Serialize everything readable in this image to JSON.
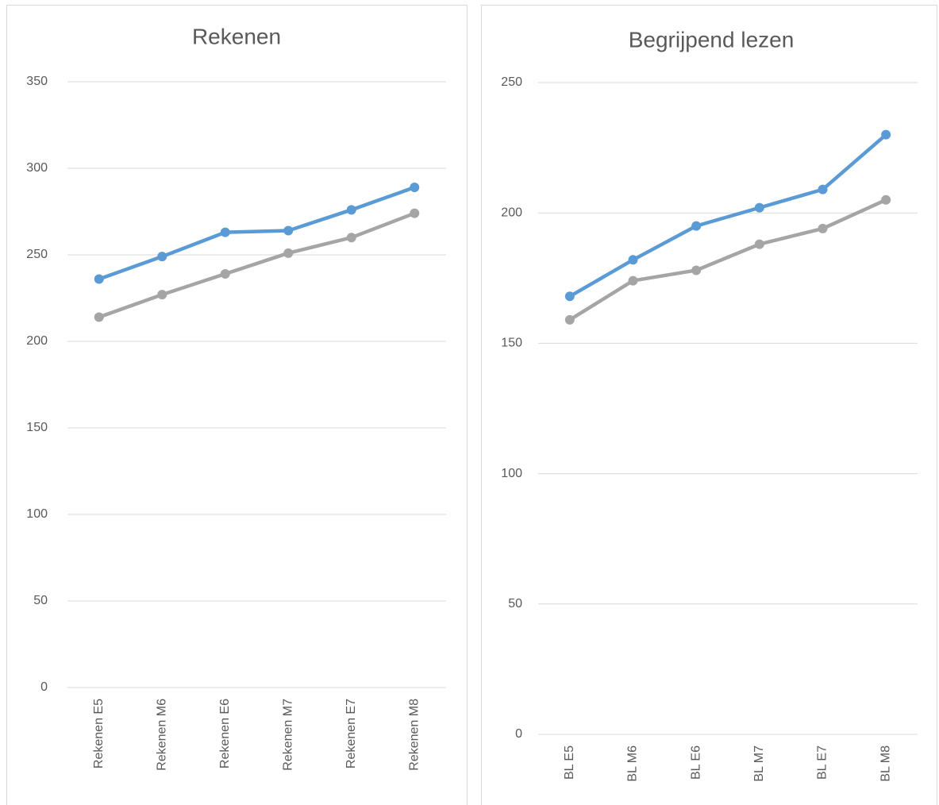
{
  "chart_data": [
    {
      "type": "line",
      "title": "Rekenen",
      "categories": [
        "Rekenen E5",
        "Rekenen M6",
        "Rekenen E6",
        "Rekenen M7",
        "Rekenen E7",
        "Rekenen M8"
      ],
      "series": [
        {
          "color": "#5b9bd5",
          "values": [
            236,
            249,
            263,
            264,
            276,
            289
          ]
        },
        {
          "color": "#a5a5a5",
          "values": [
            214,
            227,
            239,
            251,
            260,
            274
          ]
        }
      ],
      "ylim": [
        0,
        350
      ],
      "yticks": [
        0,
        50,
        100,
        150,
        200,
        250,
        300,
        350
      ],
      "grid": true
    },
    {
      "type": "line",
      "title": "Begrijpend lezen",
      "categories": [
        "BL E5",
        "BL M6",
        "BL E6",
        "BL M7",
        "BL E7",
        "BL M8"
      ],
      "series": [
        {
          "color": "#5b9bd5",
          "values": [
            168,
            182,
            195,
            202,
            209,
            230
          ]
        },
        {
          "color": "#a5a5a5",
          "values": [
            159,
            174,
            178,
            188,
            194,
            205
          ]
        }
      ],
      "ylim": [
        0,
        250
      ],
      "yticks": [
        0,
        50,
        100,
        150,
        200,
        250
      ],
      "grid": true
    }
  ]
}
